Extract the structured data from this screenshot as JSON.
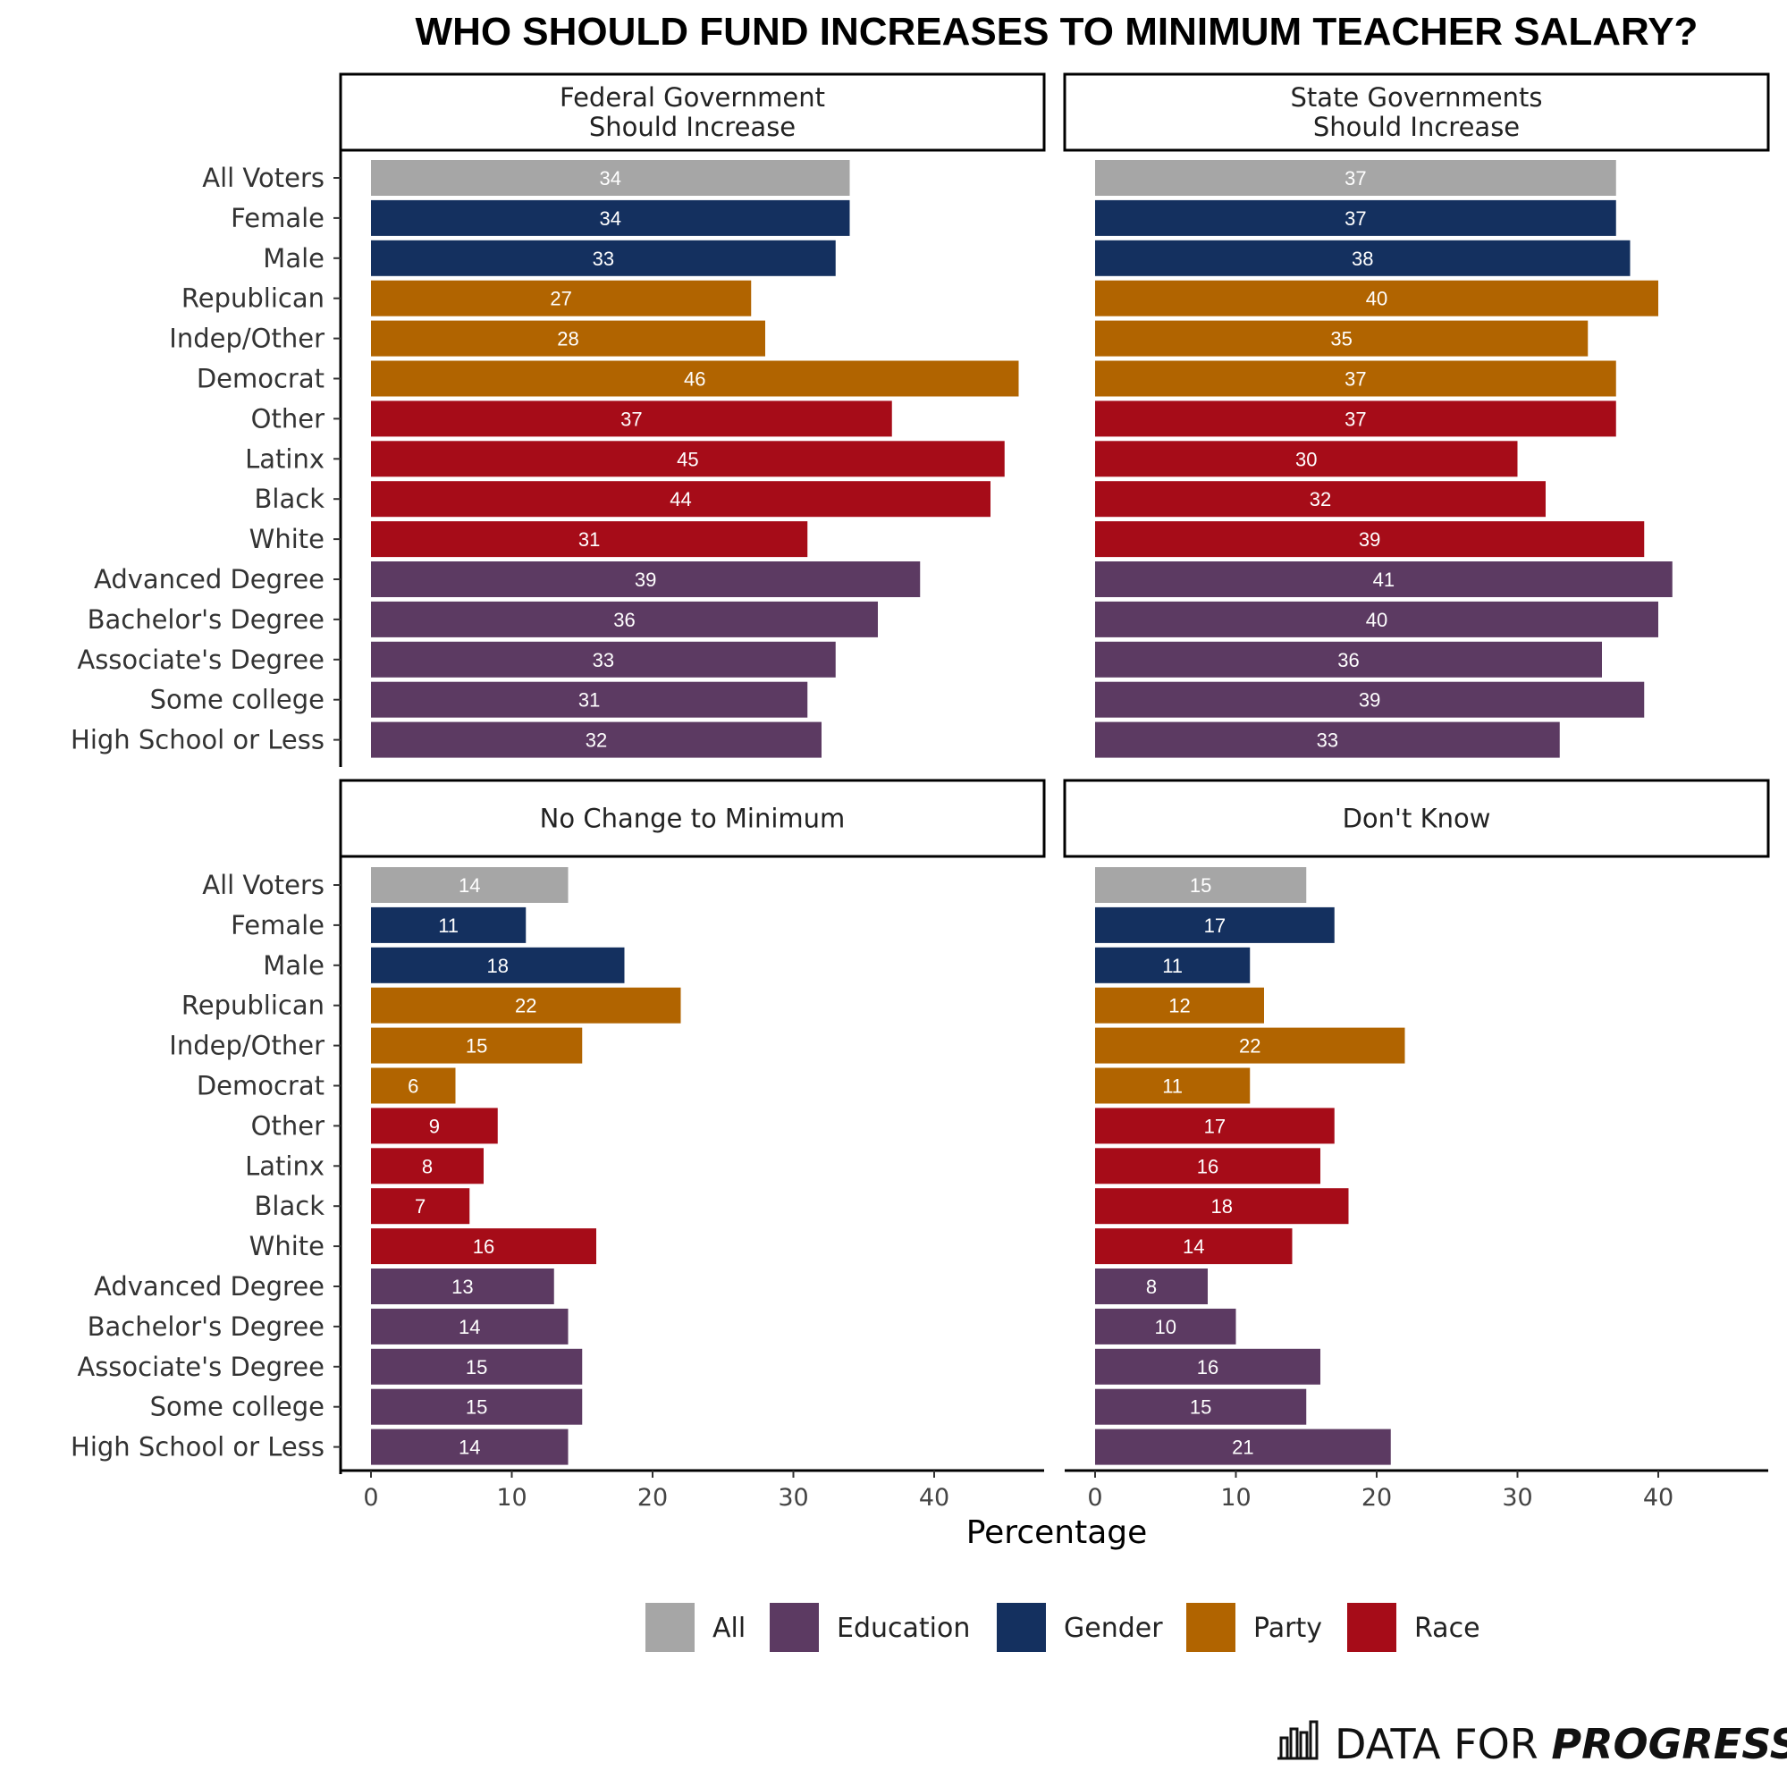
{
  "chart_data": {
    "type": "bar",
    "orientation": "horizontal",
    "title": "WHO SHOULD FUND INCREASES TO MINIMUM TEACHER SALARY?",
    "xlabel": "Percentage",
    "xlim": [
      0,
      48
    ],
    "x_ticks": [
      "0",
      "10",
      "20",
      "30",
      "40"
    ],
    "categories": [
      "All Voters",
      "Female",
      "Male",
      "Republican",
      "Indep/Other",
      "Democrat",
      "Other",
      "Latinx",
      "Black",
      "White",
      "Advanced Degree",
      "Bachelor's Degree",
      "Associate's Degree",
      "Some college",
      "High School or Less"
    ],
    "groups": [
      "All",
      "Gender",
      "Gender",
      "Party",
      "Party",
      "Party",
      "Race",
      "Race",
      "Race",
      "Race",
      "Education",
      "Education",
      "Education",
      "Education",
      "Education"
    ],
    "panels": [
      {
        "name": "Federal Government Should Increase",
        "lines": [
          "Federal Government",
          "Should Increase"
        ],
        "values": [
          34,
          34,
          33,
          27,
          28,
          46,
          37,
          45,
          44,
          31,
          39,
          36,
          33,
          31,
          32
        ]
      },
      {
        "name": "State Governments Should Increase",
        "lines": [
          "State Governments",
          "Should Increase"
        ],
        "values": [
          37,
          37,
          38,
          40,
          35,
          37,
          37,
          30,
          32,
          39,
          41,
          40,
          36,
          39,
          33
        ]
      },
      {
        "name": "No Change to Minimum",
        "lines": [
          "No Change to Minimum"
        ],
        "values": [
          14,
          11,
          18,
          22,
          15,
          6,
          9,
          8,
          7,
          16,
          13,
          14,
          15,
          15,
          14
        ]
      },
      {
        "name": "Don't Know",
        "lines": [
          "Don't Know"
        ],
        "values": [
          15,
          17,
          11,
          12,
          22,
          11,
          17,
          16,
          18,
          14,
          8,
          10,
          16,
          15,
          21
        ]
      }
    ],
    "legend": [
      {
        "label": "All",
        "color": "#a6a6a6"
      },
      {
        "label": "Education",
        "color": "#5c3a62"
      },
      {
        "label": "Gender",
        "color": "#14305f"
      },
      {
        "label": "Party",
        "color": "#b16400"
      },
      {
        "label": "Race",
        "color": "#a60c18"
      }
    ],
    "legend_position": "bottom"
  },
  "brand": {
    "light": "DATA FOR ",
    "bold": "PROGRESS"
  }
}
